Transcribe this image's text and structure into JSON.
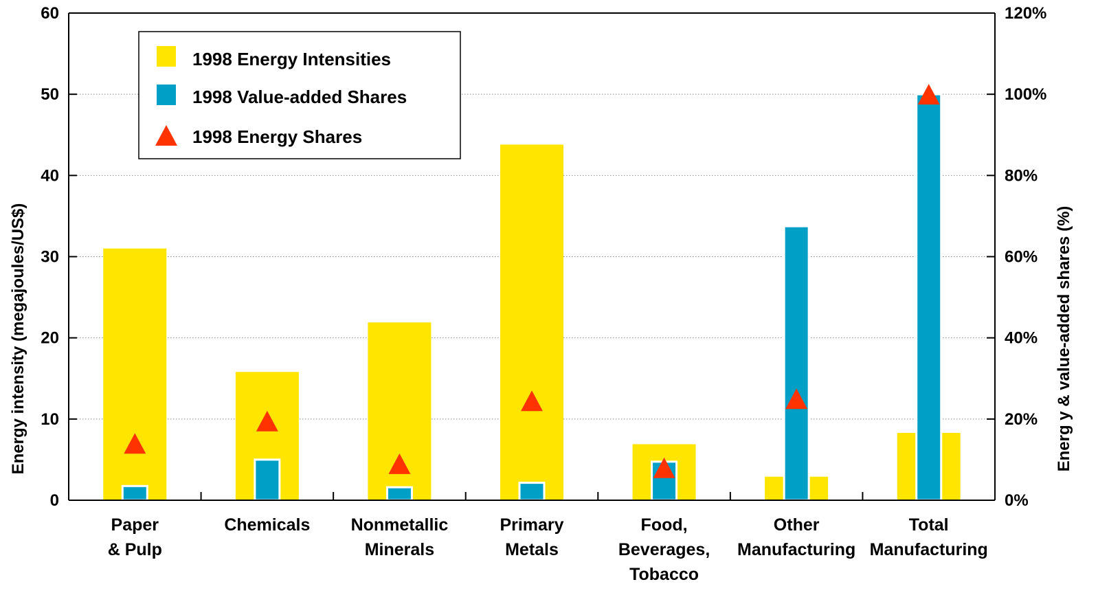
{
  "chart_data": {
    "type": "bar",
    "categories": [
      [
        "Paper",
        "& Pulp"
      ],
      [
        "Chemicals"
      ],
      [
        "Nonmetallic",
        "Minerals"
      ],
      [
        "Primary",
        "Metals"
      ],
      [
        "Food,",
        "Beverages,",
        "Tobacco"
      ],
      [
        "Other",
        "Manufacturing"
      ],
      [
        "Total",
        "Manufacturing"
      ]
    ],
    "series": [
      {
        "name": "1998 Energy Intensities",
        "axis": "left",
        "style": "wide-bar",
        "color": "#FFE500",
        "values": [
          31,
          15.8,
          21.9,
          43.8,
          6.9,
          2.9,
          8.3
        ]
      },
      {
        "name": "1998 Value-added Shares",
        "axis": "right",
        "style": "narrow-bar",
        "color": "#00A0C6",
        "values": [
          3.5,
          10,
          3.2,
          4.3,
          9.5,
          67.5,
          100
        ]
      },
      {
        "name": "1998 Energy Shares",
        "axis": "right",
        "style": "triangle-marker",
        "color": "#FF3300",
        "values": [
          14,
          19.5,
          9,
          24.5,
          8,
          25,
          100
        ]
      }
    ],
    "y_left": {
      "label": "Energy intensity (megajoules/US$)",
      "min": 0,
      "max": 60,
      "ticks": [
        0,
        10,
        20,
        30,
        40,
        50,
        60
      ]
    },
    "y_right": {
      "label": "Energ y & value-added shares (%)",
      "min": 0,
      "max": 120,
      "ticks": [
        "0%",
        "20%",
        "40%",
        "60%",
        "80%",
        "100%",
        "120%"
      ]
    },
    "grid": "horizontal-dotted",
    "legend_position": "top-left"
  }
}
